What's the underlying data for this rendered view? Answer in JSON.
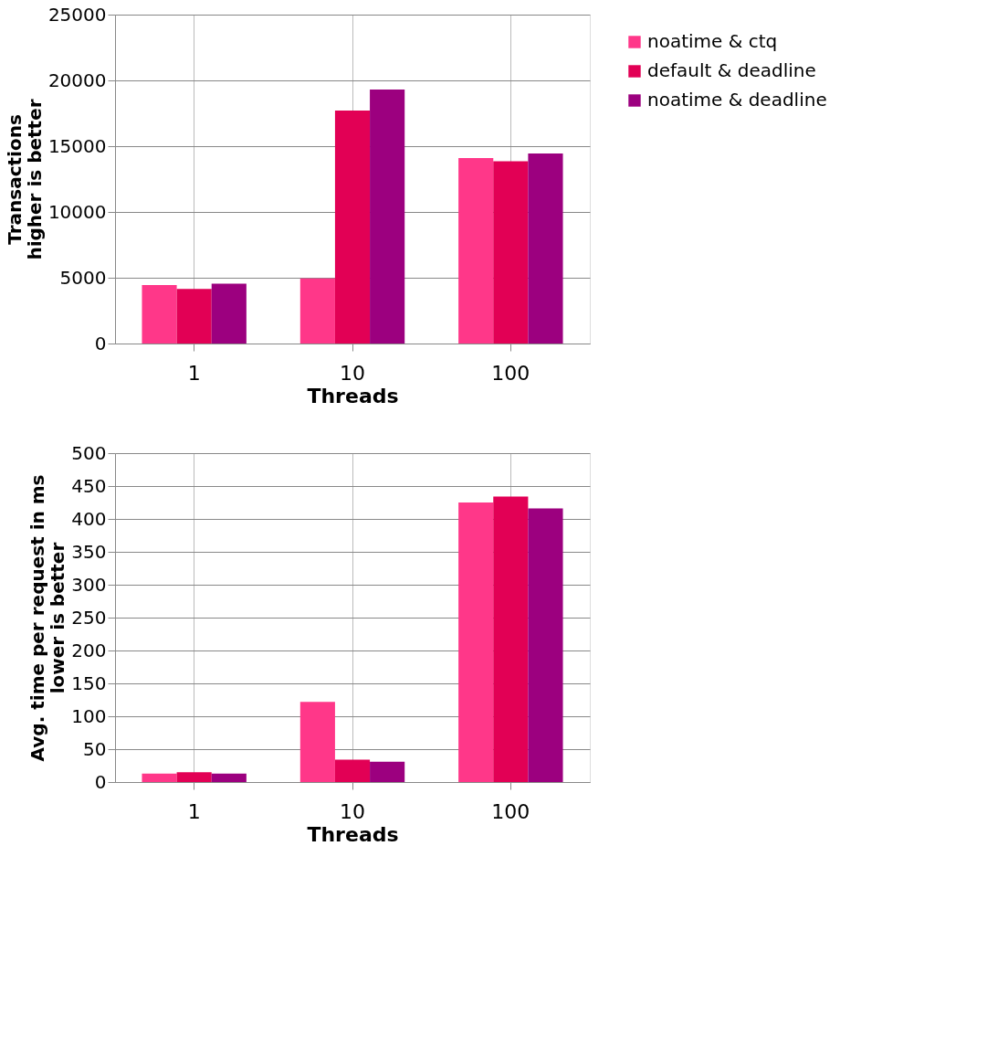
{
  "chart_data": [
    {
      "type": "bar",
      "xlabel": "Threads",
      "ylabel": "Transactions\nhigher is better",
      "categories": [
        "1",
        "10",
        "100"
      ],
      "series": [
        {
          "name": "noatime & ctq",
          "color": "#ff3789",
          "values": [
            4450,
            4950,
            14100
          ]
        },
        {
          "name": "default & deadline",
          "color": "#e20055",
          "values": [
            4150,
            17700,
            13850
          ]
        },
        {
          "name": "noatime & deadline",
          "color": "#9c007f",
          "values": [
            4550,
            19300,
            14450
          ]
        }
      ],
      "ylim": [
        0,
        25000
      ],
      "yticks": [
        0,
        5000,
        10000,
        15000,
        20000,
        25000
      ],
      "grid": true,
      "legend": "right"
    },
    {
      "type": "bar",
      "xlabel": "Threads",
      "ylabel": "Avg. time per request in ms\nlower is better",
      "categories": [
        "1",
        "10",
        "100"
      ],
      "series": [
        {
          "name": "noatime & ctq",
          "color": "#ff3789",
          "values": [
            13,
            122,
            425
          ]
        },
        {
          "name": "default & deadline",
          "color": "#e20055",
          "values": [
            15,
            34,
            434
          ]
        },
        {
          "name": "noatime & deadline",
          "color": "#9c007f",
          "values": [
            13,
            31,
            416
          ]
        }
      ],
      "ylim": [
        0,
        500
      ],
      "yticks": [
        0,
        50,
        100,
        150,
        200,
        250,
        300,
        350,
        400,
        450,
        500
      ],
      "grid": true,
      "legend": "right"
    }
  ]
}
